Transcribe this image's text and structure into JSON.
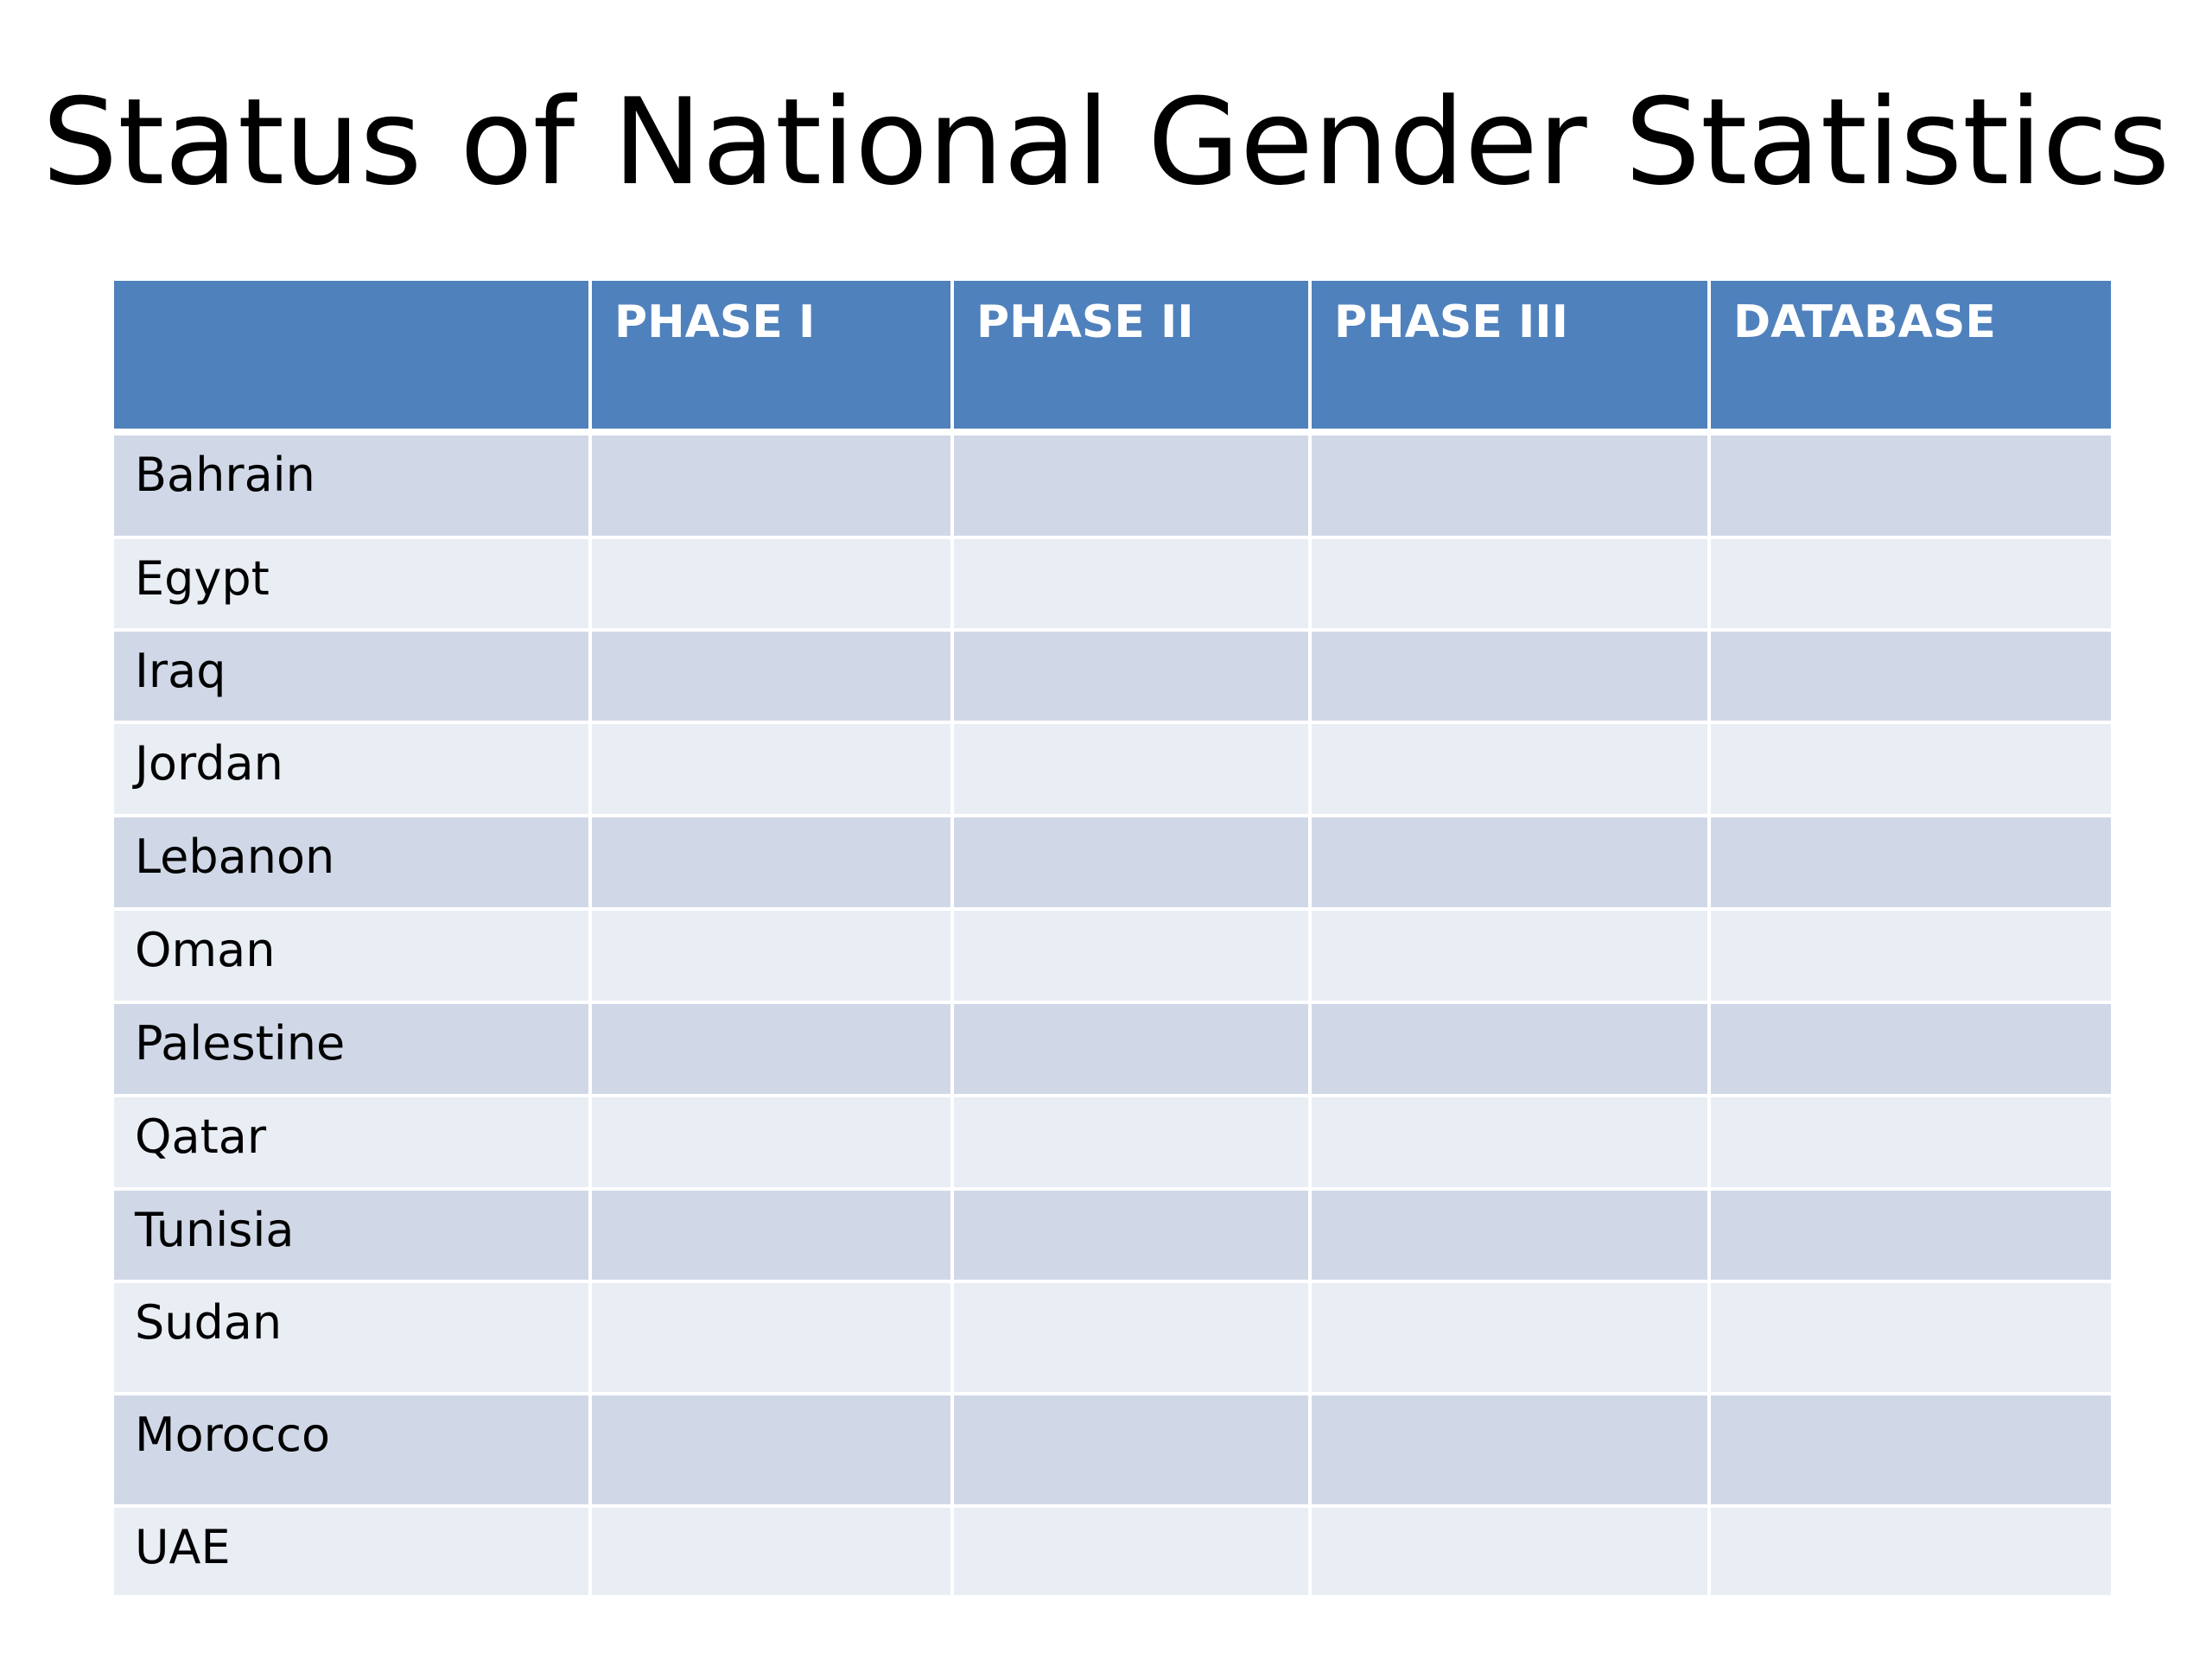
{
  "slide": {
    "title": "Status of National Gender Statistics"
  },
  "table": {
    "headers": [
      "",
      "PHASE I",
      "PHASE II",
      "PHASE III",
      "DATABASE"
    ],
    "rows": [
      {
        "country": "Bahrain",
        "cells": [
          "",
          "",
          "",
          ""
        ]
      },
      {
        "country": "Egypt",
        "cells": [
          "",
          "",
          "",
          ""
        ]
      },
      {
        "country": "Iraq",
        "cells": [
          "",
          "",
          "",
          ""
        ]
      },
      {
        "country": "Jordan",
        "cells": [
          "",
          "",
          "",
          ""
        ]
      },
      {
        "country": "Lebanon",
        "cells": [
          "",
          "",
          "",
          ""
        ]
      },
      {
        "country": "Oman",
        "cells": [
          "",
          "",
          "",
          ""
        ]
      },
      {
        "country": "Palestine",
        "cells": [
          "",
          "",
          "",
          ""
        ]
      },
      {
        "country": "Qatar",
        "cells": [
          "",
          "",
          "",
          ""
        ]
      },
      {
        "country": "Tunisia",
        "cells": [
          "",
          "",
          "",
          ""
        ]
      },
      {
        "country": "Sudan",
        "cells": [
          "",
          "",
          "",
          ""
        ]
      },
      {
        "country": "Morocco",
        "cells": [
          "",
          "",
          "",
          ""
        ]
      },
      {
        "country": "UAE",
        "cells": [
          "",
          "",
          "",
          ""
        ]
      }
    ]
  },
  "colors": {
    "header_bg": "#4f81bd",
    "header_text": "#ffffff",
    "row_band_dark": "#d0d8e8",
    "row_band_light": "#e9edf4"
  }
}
